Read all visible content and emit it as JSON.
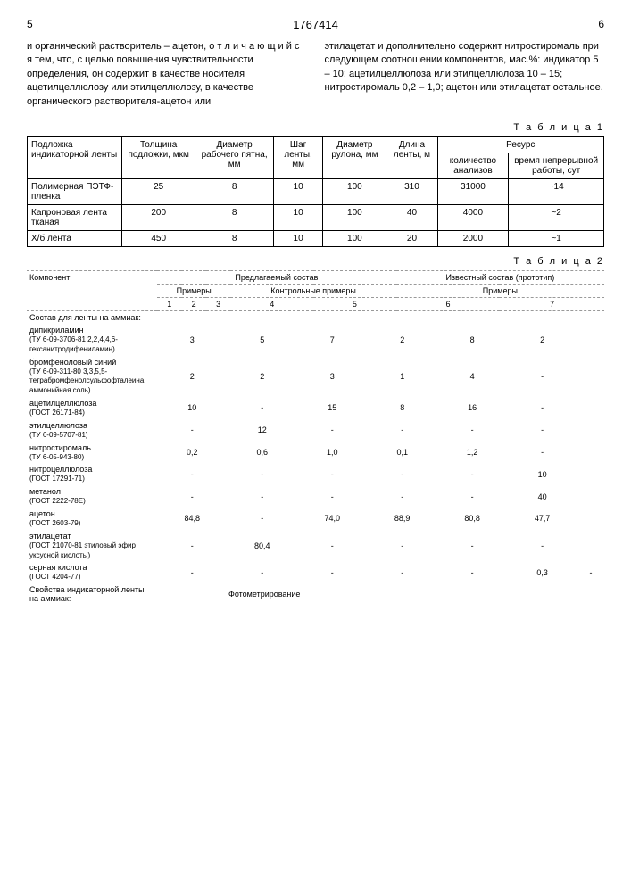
{
  "header": {
    "left_page": "5",
    "doc_number": "1767414",
    "right_page": "6"
  },
  "paragraphs": {
    "left": "и органический растворитель – ацетон, о т л и ч а ю щ и й с я тем, что, с целью повышения чувствительности определения, он содержит в качестве носителя ацетилцеллюлозу или этилцеллюлозу, в качестве органического растворителя-ацетон или",
    "right": "этилацетат и дополнительно содержит нитростиромаль при следующем соотношении компонентов, мас.%: индикатор 5 – 10; ацетилцеллюлоза или этилцеллюлоза 10 – 15; нитростиромаль 0,2 – 1,0; ацетон или этилацетат остальное."
  },
  "table1": {
    "label": "Т а б л и ц а 1",
    "headers": [
      "Подложка индикаторной ленты",
      "Толщина подложки, мкм",
      "Диаметр рабочего пятна, мм",
      "Шаг ленты, мм",
      "Диаметр рулона, мм",
      "Длина ленты, м",
      "Ресурс"
    ],
    "resource_sub": [
      "количество анализов",
      "время непрерывной работы, сут"
    ],
    "rows": [
      {
        "name": "Полимерная ПЭТФ-пленка",
        "thick": "25",
        "diam": "8",
        "step": "10",
        "roll": "100",
        "len": "310",
        "count": "31000",
        "time": "~14"
      },
      {
        "name": "Капроновая лента тканая",
        "thick": "200",
        "diam": "8",
        "step": "10",
        "roll": "100",
        "len": "40",
        "count": "4000",
        "time": "~2"
      },
      {
        "name": "Х/б лента",
        "thick": "450",
        "diam": "8",
        "step": "10",
        "roll": "100",
        "len": "20",
        "count": "2000",
        "time": "~1"
      }
    ]
  },
  "table2": {
    "label": "Т а б л и ц а 2",
    "head_component": "Компонент",
    "head_proposed": "Предлагаемый состав",
    "head_known": "Известный состав (прототип)",
    "head_examples": "Примеры",
    "head_control": "Контрольные примеры",
    "cols": [
      "1",
      "2",
      "3",
      "4",
      "5",
      "6",
      "7"
    ],
    "section1_title": "Состав для ленты на аммиак:",
    "rows": [
      {
        "comp": "дипикриламин",
        "sub": "(ТУ 6-09-3706-81 2,2,4,4,6-гексанитродифениламин)",
        "v": [
          "3",
          "5",
          "7",
          "2",
          "8",
          "2",
          ""
        ]
      },
      {
        "comp": "бромфеноловый синий",
        "sub": "(ТУ 6-09-311-80 3,3,5,5-тетрабромфенолсульфофталеина аммонийная соль)",
        "v": [
          "2",
          "2",
          "3",
          "1",
          "4",
          "-",
          ""
        ]
      },
      {
        "comp": "ацетилцеллюлоза",
        "sub": "(ГОСТ 26171-84)",
        "v": [
          "10",
          "-",
          "15",
          "8",
          "16",
          "-",
          ""
        ]
      },
      {
        "comp": "этилцеллюлоза",
        "sub": "(ТУ 6-09-5707-81)",
        "v": [
          "-",
          "12",
          "-",
          "-",
          "-",
          "-",
          ""
        ]
      },
      {
        "comp": "нитростиромаль",
        "sub": "(ТУ 6-05-943-80)",
        "v": [
          "0,2",
          "0,6",
          "1,0",
          "0,1",
          "1,2",
          "-",
          ""
        ]
      },
      {
        "comp": "нитроцеллюлоза",
        "sub": "(ГОСТ 17291-71)",
        "v": [
          "-",
          "-",
          "-",
          "-",
          "-",
          "10",
          ""
        ]
      },
      {
        "comp": "метанол",
        "sub": "(ГОСТ 2222-78Е)",
        "v": [
          "-",
          "-",
          "-",
          "-",
          "-",
          "40",
          ""
        ]
      },
      {
        "comp": "ацетон",
        "sub": "(ГОСТ 2603-79)",
        "v": [
          "84,8",
          "-",
          "74,0",
          "88,9",
          "80,8",
          "47,7",
          ""
        ]
      },
      {
        "comp": "этилацетат",
        "sub": "(ГОСТ 21070-81 этиловый эфир уксусной кислоты)",
        "v": [
          "-",
          "80,4",
          "-",
          "-",
          "-",
          "-",
          ""
        ]
      },
      {
        "comp": "серная кислота",
        "sub": "(ГОСТ 4204-77)",
        "v": [
          "-",
          "-",
          "-",
          "-",
          "-",
          "0,3",
          "-"
        ]
      }
    ],
    "section2_title": "Свойства индикаторной ленты на аммиак:",
    "photometry": "Фотометрирование"
  }
}
